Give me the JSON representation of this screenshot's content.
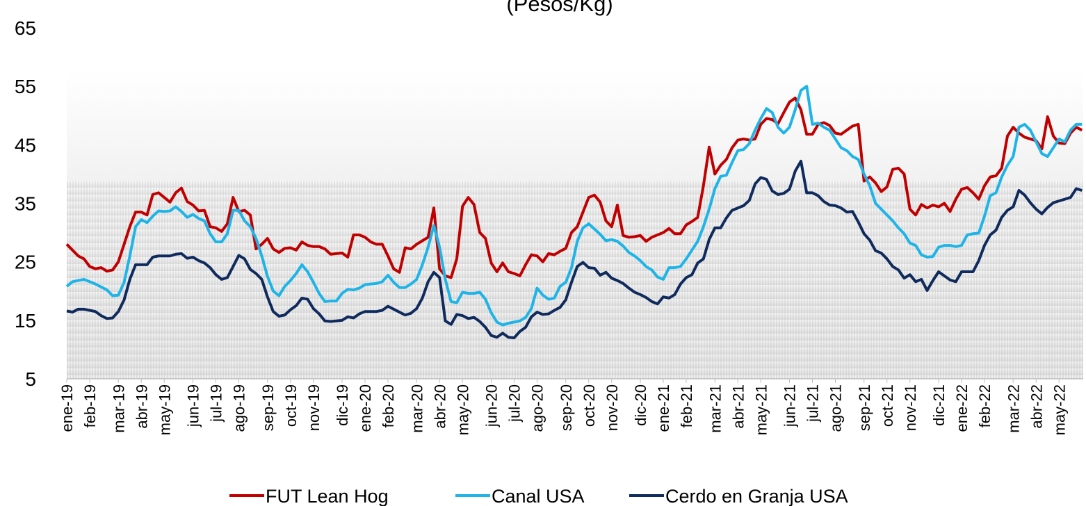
{
  "chart_data": {
    "type": "line",
    "title": "(Pesos/Kg)",
    "categories": [
      "ene-19",
      null,
      null,
      null,
      "feb-19",
      null,
      null,
      null,
      null,
      "mar-19",
      null,
      null,
      null,
      "abr-19",
      null,
      null,
      null,
      "may-19",
      null,
      null,
      null,
      null,
      "jun-19",
      null,
      null,
      null,
      "jul-19",
      null,
      null,
      null,
      "ago-19",
      null,
      null,
      null,
      null,
      "sep-19",
      null,
      null,
      null,
      "oct-19",
      null,
      null,
      null,
      "nov-19",
      null,
      null,
      null,
      null,
      "dic-19",
      null,
      null,
      null,
      "ene-20",
      null,
      null,
      null,
      "feb-20",
      null,
      null,
      null,
      null,
      "mar-20",
      null,
      null,
      null,
      "abr-20",
      null,
      null,
      null,
      "may-20",
      null,
      null,
      null,
      null,
      "jun-20",
      null,
      null,
      null,
      "jul-20",
      null,
      null,
      null,
      "ago-20",
      null,
      null,
      null,
      null,
      "sep-20",
      null,
      null,
      null,
      "oct-20",
      null,
      null,
      null,
      "nov-20",
      null,
      null,
      null,
      null,
      "dic-20",
      null,
      null,
      null,
      "ene-21",
      null,
      null,
      null,
      "feb-21",
      null,
      null,
      null,
      null,
      "mar-21",
      null,
      null,
      null,
      "abr-21",
      null,
      null,
      null,
      "may-21",
      null,
      null,
      null,
      null,
      "jun-21",
      null,
      null,
      null,
      "jul-21",
      null,
      null,
      null,
      "ago-21",
      null,
      null,
      null,
      null,
      "sep-21",
      null,
      null,
      null,
      "oct-21",
      null,
      null,
      null,
      "nov-21",
      null,
      null,
      null,
      null,
      "dic-21",
      null,
      null,
      null,
      "ene-22",
      null,
      null,
      null,
      "feb-22",
      null,
      null,
      null,
      null,
      "mar-22",
      null,
      null,
      null,
      "abr-22",
      null,
      null,
      null,
      "may-22",
      null,
      null,
      null,
      null
    ],
    "series": [
      {
        "name": "FUT Lean Hog",
        "color": "#c00000",
        "values": [
          28,
          27,
          26,
          25.5,
          24.2,
          23.8,
          24,
          23.4,
          23.6,
          25,
          28,
          31,
          33.5,
          33.5,
          33,
          36.5,
          36.8,
          36,
          35.2,
          36.8,
          37.6,
          35.3,
          34.7,
          33.7,
          33.8,
          31,
          30.8,
          30.2,
          31.5,
          36,
          33.6,
          33.8,
          33,
          27.2,
          28,
          29,
          27.2,
          26.6,
          27.3,
          27.4,
          27,
          28.4,
          27.8,
          27.6,
          27.6,
          27.2,
          26.3,
          26.4,
          26.5,
          25.8,
          29.6,
          29.6,
          29.2,
          28.4,
          28,
          28,
          26,
          23.8,
          23.2,
          27.4,
          27.2,
          28,
          28.6,
          29.2,
          34.2,
          23.8,
          22.6,
          22.3,
          25.5,
          34.5,
          36,
          34.8,
          30,
          29,
          24.8,
          23.3,
          24.8,
          23.3,
          23,
          22.6,
          24.5,
          26.2,
          26,
          25,
          26.4,
          26.2,
          26.8,
          27.3,
          30,
          31,
          33.5,
          36,
          36.4,
          35.2,
          32,
          31,
          34.7,
          29.5,
          29.2,
          29.3,
          29.5,
          28.5,
          29.2,
          29.6,
          30,
          30.7,
          29.8,
          29.8,
          31.3,
          31.9,
          32.6,
          38,
          44.6,
          40,
          41.5,
          42.5,
          44.5,
          45.8,
          46,
          45.8,
          46,
          48.5,
          49.5,
          49.3,
          48.6,
          50.5,
          52.3,
          53,
          51,
          46.8,
          46.8,
          48.5,
          48.8,
          48.3,
          47,
          46.8,
          47.5,
          48.2,
          48.5,
          38.8,
          39.5,
          38.5,
          37,
          37.8,
          40.8,
          41,
          40,
          34,
          33,
          34.8,
          34.2,
          34.7,
          34.4,
          35,
          33.6,
          35.7,
          37.4,
          37.7,
          36.8,
          35.7,
          38,
          39.5,
          39.7,
          41,
          46.5,
          48,
          47,
          46.3,
          46,
          45.7,
          44.3,
          49.8,
          46.5,
          45.3,
          45.2,
          47,
          48,
          47.5
        ]
      },
      {
        "name": "Canal USA",
        "color": "#1eb4e8",
        "values": [
          20.8,
          21.6,
          21.8,
          22,
          21.6,
          21.2,
          20.7,
          20.2,
          19.2,
          19.3,
          21.5,
          26,
          31,
          32.2,
          31.7,
          32.8,
          33.7,
          33.6,
          33.7,
          34.4,
          33.6,
          32.6,
          33.1,
          32.4,
          32,
          29.8,
          28.4,
          28.4,
          29.8,
          33.8,
          33.8,
          32,
          31,
          29,
          26,
          22.5,
          20,
          19.2,
          20.8,
          21.8,
          23,
          24.5,
          23.3,
          21.5,
          19.6,
          18.2,
          18.3,
          18.3,
          19.6,
          20.3,
          20.2,
          20.5,
          21.1,
          21.2,
          21.3,
          21.6,
          22.7,
          21.5,
          20.6,
          20.6,
          21.2,
          22,
          24.5,
          27.5,
          31.2,
          27.5,
          22,
          18.2,
          18,
          19.8,
          19.6,
          19.6,
          19.8,
          18.6,
          16.3,
          14.7,
          14.2,
          14.5,
          14.7,
          14.9,
          15.5,
          17,
          20.5,
          19.3,
          18.6,
          18.8,
          20.8,
          21.5,
          24,
          28.5,
          30.8,
          31.5,
          30.6,
          29.7,
          28.6,
          28.8,
          28.5,
          27.7,
          26.6,
          26,
          25.2,
          24.2,
          23.6,
          22.4,
          22,
          24,
          24,
          24.2,
          25.5,
          27,
          28.5,
          31,
          34,
          37.5,
          39.6,
          39.8,
          42,
          44,
          44.2,
          45.2,
          47.5,
          49.5,
          51.2,
          50.5,
          48,
          47,
          48,
          51,
          54.3,
          55,
          48.5,
          48.7,
          48,
          47.5,
          46,
          44.5,
          44,
          43,
          42.5,
          40,
          38,
          35,
          34,
          33,
          32,
          30.8,
          29.8,
          28.2,
          27.8,
          26.2,
          25.8,
          25.9,
          27.5,
          27.8,
          27.8,
          27.6,
          27.8,
          29.6,
          29.8,
          29.9,
          32.8,
          36.3,
          36.8,
          39.5,
          41.5,
          43,
          48,
          48.5,
          47.5,
          45.5,
          43.5,
          43,
          44.5,
          46,
          45.5,
          47.5,
          48.5,
          48.5
        ]
      },
      {
        "name": "Cerdo en Granja USA",
        "color": "#0f2a5c",
        "values": [
          16.6,
          16.4,
          16.9,
          16.9,
          16.7,
          16.5,
          15.8,
          15.3,
          15.4,
          16.5,
          18.5,
          22,
          24.5,
          24.5,
          24.5,
          25.8,
          26,
          26,
          26,
          26.3,
          26.4,
          25.6,
          25.8,
          25.2,
          24.8,
          24,
          22.8,
          22,
          22.3,
          24.2,
          26.1,
          25.5,
          23.7,
          23,
          22,
          19,
          16.5,
          15.7,
          15.9,
          16.8,
          17.5,
          18.8,
          18.6,
          17,
          16.1,
          14.9,
          14.8,
          14.9,
          15,
          15.6,
          15.4,
          16.1,
          16.5,
          16.5,
          16.5,
          16.7,
          17.4,
          16.9,
          16.4,
          15.9,
          16.2,
          17,
          18.8,
          21.6,
          23.2,
          22.3,
          14.9,
          14.3,
          16,
          15.8,
          15.3,
          15.5,
          14.8,
          13.8,
          12.4,
          12.1,
          12.8,
          12.1,
          12,
          13.1,
          13.8,
          15.6,
          16.4,
          16,
          16.1,
          16.7,
          17.2,
          18.5,
          21.5,
          24.2,
          24.9,
          24,
          23.9,
          22.7,
          23.2,
          22.2,
          21.8,
          21.3,
          20.5,
          19.8,
          19.4,
          18.9,
          18.2,
          17.8,
          19,
          18.8,
          19.4,
          21.2,
          22.3,
          22.8,
          24.8,
          25.5,
          28.8,
          30.8,
          30.8,
          32.5,
          33.8,
          34.2,
          34.6,
          35.5,
          38.3,
          39.4,
          39.1,
          37.1,
          36.5,
          36.7,
          37.4,
          40.5,
          42.2,
          36.8,
          36.8,
          36.3,
          35.3,
          34.7,
          34.6,
          34.2,
          33.5,
          33.6,
          31.8,
          29.8,
          28.7,
          26.9,
          26.5,
          25.5,
          24.2,
          23.6,
          22.2,
          22.8,
          21.6,
          22,
          20.1,
          21.8,
          23.3,
          22.6,
          21.9,
          21.6,
          23.3,
          23.3,
          23.3,
          25.2,
          27.8,
          29.6,
          30.4,
          32.6,
          33.8,
          34.4,
          37.2,
          36.4,
          35.1,
          34,
          33.2,
          34.3,
          35.1,
          35.4,
          35.7,
          36,
          37.5,
          37.2
        ]
      }
    ],
    "ylim": [
      5,
      65
    ],
    "yticks": [
      5,
      15,
      25,
      35,
      45,
      55,
      65
    ],
    "grid": false,
    "legend": "bottom"
  }
}
